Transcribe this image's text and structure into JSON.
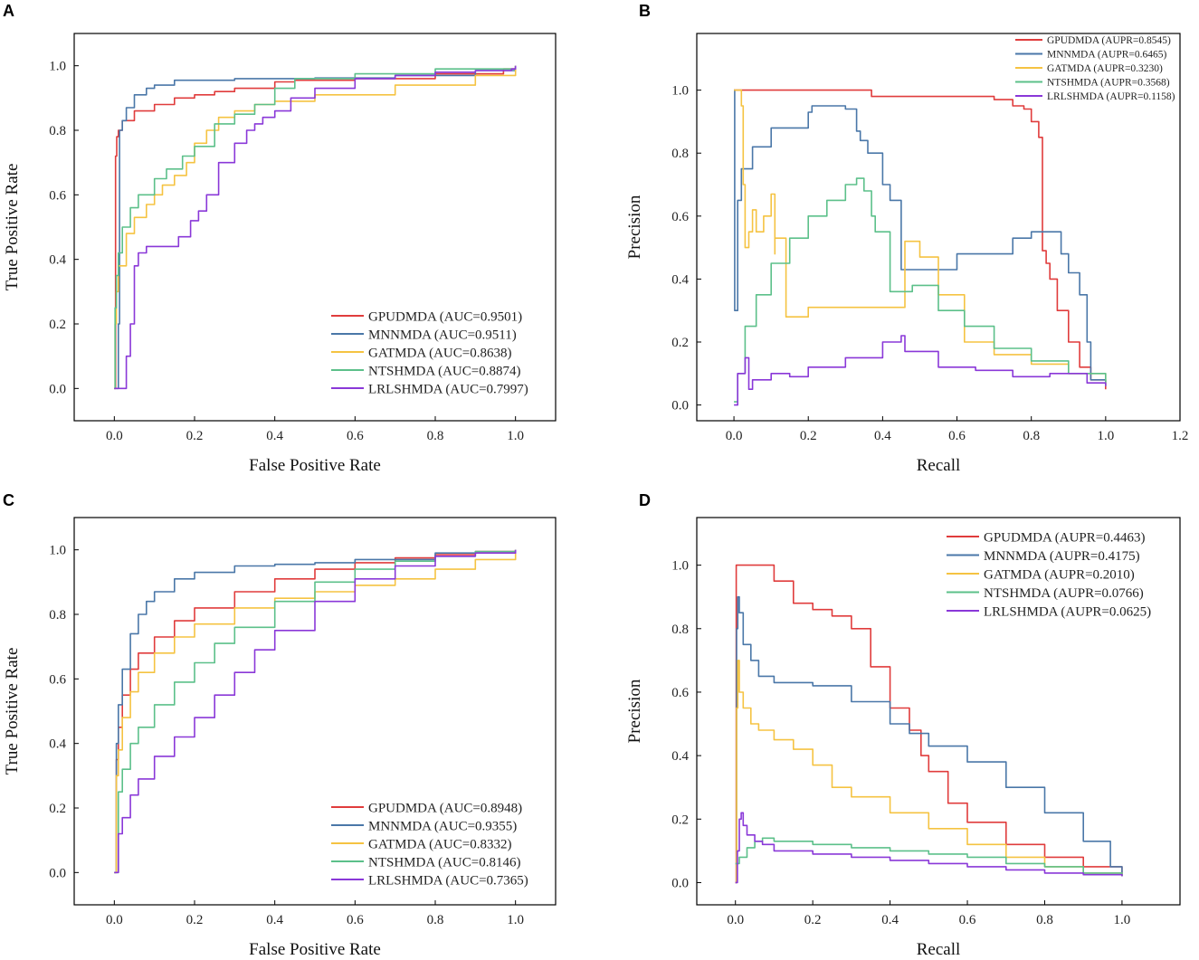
{
  "figure": {
    "panel_labels": [
      "A",
      "B",
      "C",
      "D"
    ]
  },
  "chart_data": [
    {
      "panel": "A",
      "type": "line",
      "title": "",
      "xlabel": "False Positive Rate",
      "ylabel": "True Positive Rate",
      "xlim": [
        -0.1,
        1.1
      ],
      "ylim": [
        -0.1,
        1.1
      ],
      "xticks": [
        "0.0",
        "0.2",
        "0.4",
        "0.6",
        "0.8",
        "1.0"
      ],
      "yticks": [
        "0.0",
        "0.2",
        "0.4",
        "0.6",
        "0.8",
        "1.0"
      ],
      "legend_position": "bottom-right",
      "series": [
        {
          "name": "GPUDMDA (AUC=0.9501)",
          "color": "#e03c3c",
          "x": [
            0,
            0.003,
            0.006,
            0.01,
            0.02,
            0.05,
            0.1,
            0.15,
            0.2,
            0.25,
            0.3,
            0.4,
            0.45,
            0.6,
            0.8,
            0.97,
            1.0
          ],
          "y": [
            0,
            0.72,
            0.78,
            0.8,
            0.83,
            0.86,
            0.88,
            0.9,
            0.91,
            0.92,
            0.93,
            0.95,
            0.955,
            0.96,
            0.975,
            0.99,
            1.0
          ]
        },
        {
          "name": "MNNMDA (AUC=0.9511)",
          "color": "#4a77a8",
          "x": [
            0,
            0.01,
            0.013,
            0.02,
            0.03,
            0.05,
            0.08,
            0.1,
            0.15,
            0.3,
            0.5,
            0.7,
            0.9,
            1.0
          ],
          "y": [
            0,
            0.2,
            0.8,
            0.83,
            0.87,
            0.91,
            0.93,
            0.94,
            0.955,
            0.96,
            0.962,
            0.97,
            0.985,
            1.0
          ]
        },
        {
          "name": "GATMDA (AUC=0.8638)",
          "color": "#f5c342",
          "x": [
            0,
            0.002,
            0.005,
            0.01,
            0.03,
            0.05,
            0.08,
            0.1,
            0.12,
            0.15,
            0.18,
            0.2,
            0.23,
            0.26,
            0.3,
            0.35,
            0.4,
            0.5,
            0.7,
            0.9,
            1.0
          ],
          "y": [
            0,
            0.2,
            0.3,
            0.38,
            0.48,
            0.53,
            0.57,
            0.6,
            0.63,
            0.66,
            0.7,
            0.76,
            0.8,
            0.84,
            0.86,
            0.88,
            0.89,
            0.91,
            0.94,
            0.97,
            1.0
          ]
        },
        {
          "name": "NTSHMDA (AUC=0.8874)",
          "color": "#5cc08a",
          "x": [
            0,
            0.002,
            0.005,
            0.01,
            0.02,
            0.04,
            0.06,
            0.1,
            0.13,
            0.17,
            0.2,
            0.25,
            0.3,
            0.35,
            0.4,
            0.45,
            0.6,
            0.8,
            1.0
          ],
          "y": [
            0,
            0.25,
            0.35,
            0.42,
            0.5,
            0.56,
            0.6,
            0.65,
            0.68,
            0.72,
            0.75,
            0.82,
            0.85,
            0.88,
            0.93,
            0.96,
            0.975,
            0.99,
            1.0
          ]
        },
        {
          "name": "LRLSHMDA (AUC=0.7997)",
          "color": "#8a38d8",
          "x": [
            0,
            0.03,
            0.04,
            0.05,
            0.06,
            0.08,
            0.14,
            0.16,
            0.19,
            0.21,
            0.23,
            0.26,
            0.3,
            0.33,
            0.35,
            0.37,
            0.4,
            0.44,
            0.5,
            0.6,
            0.7,
            0.8,
            0.9,
            0.99,
            1.0
          ],
          "y": [
            0,
            0.1,
            0.2,
            0.38,
            0.42,
            0.44,
            0.44,
            0.47,
            0.52,
            0.55,
            0.6,
            0.7,
            0.76,
            0.8,
            0.82,
            0.84,
            0.86,
            0.9,
            0.93,
            0.96,
            0.97,
            0.98,
            0.985,
            0.99,
            1.0
          ]
        }
      ]
    },
    {
      "panel": "B",
      "type": "line",
      "title": "",
      "xlabel": "Recall",
      "ylabel": "Precision",
      "xlim": [
        -0.1,
        1.2
      ],
      "ylim": [
        -0.05,
        1.18
      ],
      "xticks": [
        "0.0",
        "0.2",
        "0.4",
        "0.6",
        "0.8",
        "1.0",
        "1.2"
      ],
      "yticks": [
        "0.0",
        "0.2",
        "0.4",
        "0.6",
        "0.8",
        "1.0"
      ],
      "legend_position": "top-right",
      "series": [
        {
          "name": "GPUDMDA (AUPR=0.8545)",
          "color": "#e03c3c",
          "x": [
            0,
            0.002,
            0.1,
            0.3,
            0.37,
            0.5,
            0.7,
            0.75,
            0.78,
            0.8,
            0.82,
            0.83,
            0.83,
            0.84,
            0.85,
            0.87,
            0.9,
            0.93,
            0.96,
            1.0
          ],
          "y": [
            1.0,
            1.0,
            1.0,
            1.0,
            0.98,
            0.98,
            0.97,
            0.95,
            0.94,
            0.9,
            0.85,
            0.7,
            0.49,
            0.45,
            0.4,
            0.3,
            0.2,
            0.12,
            0.08,
            0.05
          ]
        },
        {
          "name": "MNNMDA (AUPR=0.6465)",
          "color": "#4a77a8",
          "x": [
            0,
            0.002,
            0.01,
            0.02,
            0.05,
            0.1,
            0.2,
            0.21,
            0.3,
            0.33,
            0.34,
            0.36,
            0.4,
            0.42,
            0.45,
            0.6,
            0.75,
            0.8,
            0.86,
            0.88,
            0.9,
            0.93,
            0.95,
            0.96,
            1.0
          ],
          "y": [
            1.0,
            0.3,
            0.65,
            0.75,
            0.82,
            0.88,
            0.93,
            0.95,
            0.94,
            0.87,
            0.84,
            0.8,
            0.7,
            0.65,
            0.43,
            0.48,
            0.53,
            0.55,
            0.55,
            0.48,
            0.42,
            0.35,
            0.2,
            0.08,
            0.07
          ]
        },
        {
          "name": "GATMDA (AUPR=0.3230)",
          "color": "#f5c342",
          "x": [
            0,
            0.02,
            0.025,
            0.03,
            0.04,
            0.05,
            0.06,
            0.08,
            0.1,
            0.11,
            0.11,
            0.14,
            0.14,
            0.2,
            0.46,
            0.5,
            0.55,
            0.62,
            0.7,
            0.8,
            0.9,
            1.0
          ],
          "y": [
            1.0,
            0.95,
            0.7,
            0.5,
            0.55,
            0.62,
            0.55,
            0.6,
            0.67,
            0.48,
            0.53,
            0.5,
            0.28,
            0.31,
            0.52,
            0.47,
            0.35,
            0.2,
            0.16,
            0.13,
            0.1,
            0.06
          ]
        },
        {
          "name": "NTSHMDA (AUPR=0.3568)",
          "color": "#5cc08a",
          "x": [
            0,
            0.01,
            0.03,
            0.06,
            0.1,
            0.15,
            0.2,
            0.25,
            0.3,
            0.33,
            0.35,
            0.37,
            0.38,
            0.42,
            0.48,
            0.55,
            0.62,
            0.7,
            0.8,
            0.9,
            1.0
          ],
          "y": [
            0.01,
            0.1,
            0.25,
            0.35,
            0.45,
            0.53,
            0.6,
            0.65,
            0.7,
            0.72,
            0.68,
            0.6,
            0.55,
            0.36,
            0.38,
            0.3,
            0.25,
            0.18,
            0.14,
            0.1,
            0.06
          ]
        },
        {
          "name": "LRLSHMDA (AUPR=0.1158)",
          "color": "#8a38d8",
          "x": [
            0,
            0.01,
            0.03,
            0.04,
            0.05,
            0.06,
            0.1,
            0.15,
            0.2,
            0.3,
            0.4,
            0.45,
            0.46,
            0.55,
            0.65,
            0.75,
            0.85,
            0.95,
            1.0
          ],
          "y": [
            0.0,
            0.1,
            0.15,
            0.05,
            0.08,
            0.08,
            0.1,
            0.09,
            0.12,
            0.15,
            0.2,
            0.22,
            0.17,
            0.12,
            0.11,
            0.09,
            0.1,
            0.07,
            0.06
          ]
        }
      ]
    },
    {
      "panel": "C",
      "type": "line",
      "title": "",
      "xlabel": "False Positive Rate",
      "ylabel": "True Positive Rate",
      "xlim": [
        -0.1,
        1.1
      ],
      "ylim": [
        -0.1,
        1.1
      ],
      "xticks": [
        "0.0",
        "0.2",
        "0.4",
        "0.6",
        "0.8",
        "1.0"
      ],
      "yticks": [
        "0.0",
        "0.2",
        "0.4",
        "0.6",
        "0.8",
        "1.0"
      ],
      "legend_position": "bottom-right",
      "series": [
        {
          "name": "GPUDMDA (AUC=0.8948)",
          "color": "#e03c3c",
          "x": [
            0,
            0.005,
            0.01,
            0.02,
            0.04,
            0.06,
            0.1,
            0.15,
            0.2,
            0.3,
            0.4,
            0.5,
            0.6,
            0.7,
            0.8,
            0.9,
            1.0
          ],
          "y": [
            0,
            0.35,
            0.45,
            0.55,
            0.63,
            0.68,
            0.73,
            0.78,
            0.82,
            0.87,
            0.91,
            0.94,
            0.96,
            0.975,
            0.985,
            0.995,
            1.0
          ]
        },
        {
          "name": "MNNMDA (AUC=0.9355)",
          "color": "#4a77a8",
          "x": [
            0,
            0.005,
            0.01,
            0.02,
            0.04,
            0.06,
            0.08,
            0.1,
            0.15,
            0.2,
            0.3,
            0.4,
            0.5,
            0.6,
            0.8,
            1.0
          ],
          "y": [
            0,
            0.4,
            0.52,
            0.63,
            0.74,
            0.8,
            0.84,
            0.87,
            0.91,
            0.93,
            0.95,
            0.955,
            0.96,
            0.97,
            0.99,
            1.0
          ]
        },
        {
          "name": "GATMDA (AUC=0.8332)",
          "color": "#f5c342",
          "x": [
            0,
            0.005,
            0.01,
            0.02,
            0.04,
            0.06,
            0.1,
            0.15,
            0.2,
            0.3,
            0.4,
            0.5,
            0.6,
            0.7,
            0.8,
            0.9,
            1.0
          ],
          "y": [
            0,
            0.3,
            0.38,
            0.48,
            0.56,
            0.62,
            0.68,
            0.73,
            0.77,
            0.82,
            0.85,
            0.87,
            0.89,
            0.91,
            0.94,
            0.97,
            1.0
          ]
        },
        {
          "name": "NTSHMDA (AUC=0.8146)",
          "color": "#5cc08a",
          "x": [
            0,
            0.01,
            0.02,
            0.04,
            0.06,
            0.1,
            0.15,
            0.2,
            0.25,
            0.3,
            0.4,
            0.5,
            0.6,
            0.7,
            0.8,
            0.9,
            1.0
          ],
          "y": [
            0,
            0.25,
            0.32,
            0.4,
            0.45,
            0.52,
            0.59,
            0.65,
            0.71,
            0.76,
            0.84,
            0.9,
            0.94,
            0.965,
            0.98,
            0.995,
            1.0
          ]
        },
        {
          "name": "LRLSHMDA (AUC=0.7365)",
          "color": "#8a38d8",
          "x": [
            0,
            0.01,
            0.02,
            0.04,
            0.06,
            0.1,
            0.15,
            0.2,
            0.25,
            0.3,
            0.35,
            0.4,
            0.5,
            0.6,
            0.7,
            0.8,
            0.9,
            1.0
          ],
          "y": [
            0,
            0.12,
            0.17,
            0.24,
            0.29,
            0.36,
            0.42,
            0.48,
            0.55,
            0.62,
            0.69,
            0.75,
            0.84,
            0.91,
            0.95,
            0.98,
            0.99,
            1.0
          ]
        }
      ]
    },
    {
      "panel": "D",
      "type": "line",
      "title": "",
      "xlabel": "Recall",
      "ylabel": "Precision",
      "xlim": [
        -0.1,
        1.15
      ],
      "ylim": [
        -0.07,
        1.15
      ],
      "xticks": [
        "0.0",
        "0.2",
        "0.4",
        "0.6",
        "0.8",
        "1.0"
      ],
      "yticks": [
        "0.0",
        "0.2",
        "0.4",
        "0.6",
        "0.8",
        "1.0"
      ],
      "legend_position": "top-right",
      "series": [
        {
          "name": "GPUDMDA (AUPR=0.4463)",
          "color": "#e03c3c",
          "x": [
            0,
            0.002,
            0.06,
            0.1,
            0.15,
            0.2,
            0.25,
            0.28,
            0.3,
            0.35,
            0.4,
            0.45,
            0.48,
            0.5,
            0.55,
            0.6,
            0.7,
            0.8,
            0.9,
            1.0
          ],
          "y": [
            0,
            1.0,
            1.0,
            0.95,
            0.88,
            0.86,
            0.84,
            0.84,
            0.8,
            0.68,
            0.55,
            0.48,
            0.4,
            0.35,
            0.25,
            0.19,
            0.12,
            0.08,
            0.05,
            0.02
          ]
        },
        {
          "name": "MNNMDA (AUPR=0.4175)",
          "color": "#4a77a8",
          "x": [
            0,
            0.003,
            0.006,
            0.01,
            0.02,
            0.04,
            0.06,
            0.1,
            0.15,
            0.2,
            0.3,
            0.4,
            0.45,
            0.5,
            0.6,
            0.7,
            0.8,
            0.9,
            0.97,
            1.0
          ],
          "y": [
            0,
            0.8,
            0.9,
            0.85,
            0.75,
            0.7,
            0.65,
            0.63,
            0.63,
            0.62,
            0.57,
            0.5,
            0.47,
            0.43,
            0.38,
            0.3,
            0.22,
            0.13,
            0.05,
            0.02
          ]
        },
        {
          "name": "GATMDA (AUPR=0.2010)",
          "color": "#f5c342",
          "x": [
            0,
            0.003,
            0.006,
            0.01,
            0.02,
            0.04,
            0.06,
            0.1,
            0.15,
            0.2,
            0.25,
            0.3,
            0.4,
            0.5,
            0.6,
            0.7,
            0.8,
            0.9,
            1.0
          ],
          "y": [
            0,
            0.55,
            0.7,
            0.6,
            0.55,
            0.5,
            0.48,
            0.45,
            0.42,
            0.37,
            0.3,
            0.27,
            0.22,
            0.17,
            0.12,
            0.08,
            0.05,
            0.03,
            0.02
          ]
        },
        {
          "name": "NTSHMDA (AUPR=0.0766)",
          "color": "#5cc08a",
          "x": [
            0,
            0.01,
            0.03,
            0.05,
            0.07,
            0.1,
            0.2,
            0.3,
            0.4,
            0.5,
            0.6,
            0.7,
            0.8,
            0.9,
            1.0
          ],
          "y": [
            0.06,
            0.08,
            0.11,
            0.13,
            0.14,
            0.13,
            0.12,
            0.11,
            0.1,
            0.09,
            0.08,
            0.06,
            0.05,
            0.03,
            0.02
          ]
        },
        {
          "name": "LRLSHMDA (AUPR=0.0625)",
          "color": "#8a38d8",
          "x": [
            0,
            0.005,
            0.01,
            0.015,
            0.02,
            0.03,
            0.05,
            0.07,
            0.1,
            0.2,
            0.3,
            0.4,
            0.5,
            0.6,
            0.7,
            0.8,
            0.9,
            1.0
          ],
          "y": [
            0,
            0.1,
            0.2,
            0.22,
            0.18,
            0.15,
            0.13,
            0.12,
            0.1,
            0.09,
            0.08,
            0.07,
            0.06,
            0.05,
            0.04,
            0.03,
            0.025,
            0.02
          ]
        }
      ]
    }
  ]
}
